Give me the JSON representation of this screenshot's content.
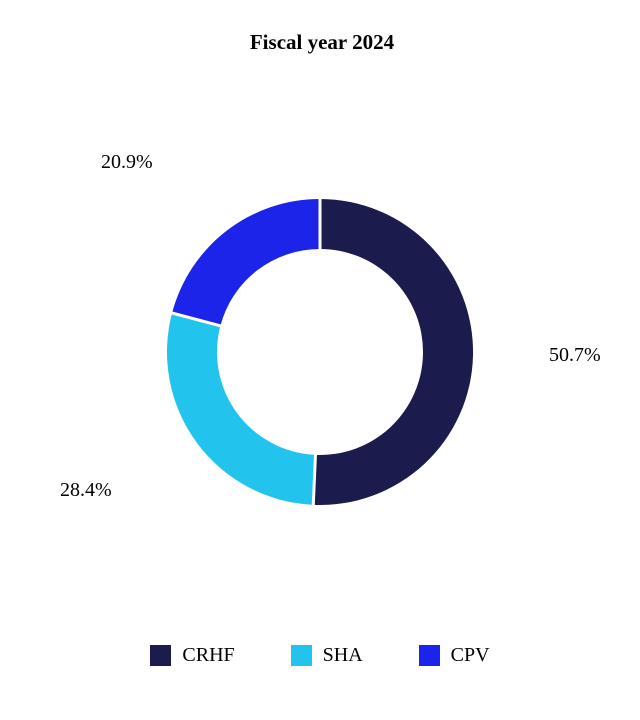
{
  "title": "Fiscal year 2024",
  "chart_data": {
    "type": "pie",
    "subtype": "donut",
    "title": "Fiscal year 2024",
    "categories": [
      "CRHF",
      "SHA",
      "CPV"
    ],
    "values": [
      50.7,
      28.4,
      20.9
    ],
    "unit": "%",
    "pct_labels": [
      "50.7%",
      "28.4%",
      "20.9%"
    ],
    "colors": [
      "#1b1b4e",
      "#22c4ee",
      "#1b24e8"
    ],
    "start": "top",
    "direction": "clockwise",
    "inner_radius_ratio": 0.67,
    "legend_position": "bottom",
    "legend": [
      {
        "label": "CRHF",
        "color": "#1b1b4e"
      },
      {
        "label": "SHA",
        "color": "#22c4ee"
      },
      {
        "label": "CPV",
        "color": "#1b24e8"
      }
    ]
  }
}
